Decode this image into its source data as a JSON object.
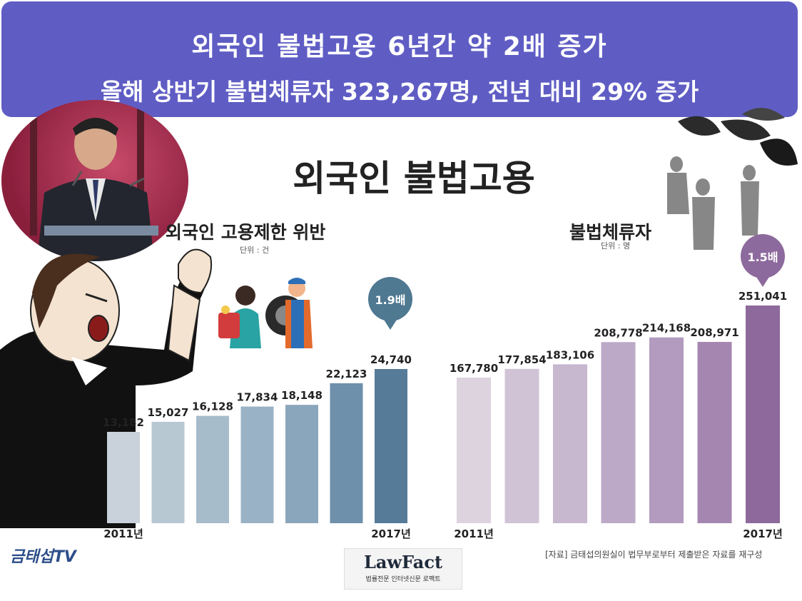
{
  "header": {
    "line1": "외국인 불법고용 6년간 약 2배 증가",
    "line2": "올해 상반기 불법체류자 323,267명, 전년 대비 29% 증가"
  },
  "main_title": "외국인 불법고용",
  "charts": {
    "left": {
      "title": "외국인 고용제한 위반",
      "unit": "단위 : 건",
      "badge": "1.9배"
    },
    "right": {
      "title": "불법체류자",
      "unit": "단위 : 명",
      "badge": "1.5배"
    }
  },
  "colors": {
    "banner": "#5f5dc4",
    "left_series": [
      "#c9d2da",
      "#b7c8d3",
      "#a7bccb",
      "#9ab2c5",
      "#8aa6bc",
      "#6e90ab",
      "#567b98"
    ],
    "right_series": [
      "#ddd3df",
      "#d0c3d6",
      "#c7b7cf",
      "#bca9c7",
      "#b29bbf",
      "#a586b1",
      "#8e6a9c"
    ],
    "left_badge": "#4f7891",
    "right_badge": "#8d6a9d"
  },
  "chart_data": [
    {
      "type": "bar",
      "title": "외국인 고용제한 위반",
      "unit": "단위 : 건",
      "categories": [
        "2011년",
        "",
        "",
        "",
        "",
        "",
        "2017년"
      ],
      "values": [
        13182,
        15027,
        16128,
        17834,
        18148,
        22123,
        24740
      ],
      "labels": [
        "13,182",
        "15,027",
        "16,128",
        "17,834",
        "18,148",
        "22,123",
        "24,740"
      ],
      "annotation": "1.9배"
    },
    {
      "type": "bar",
      "title": "불법체류자",
      "unit": "단위 : 명",
      "categories": [
        "2011년",
        "",
        "",
        "",
        "",
        "",
        "2017년"
      ],
      "values": [
        167780,
        177854,
        183106,
        208778,
        214168,
        208971,
        251041
      ],
      "labels": [
        "167,780",
        "177,854",
        "183,106",
        "208,778",
        "214,168",
        "208,971",
        "251,041"
      ],
      "annotation": "1.5배"
    }
  ],
  "footer": {
    "source": "[자료] 금태섭의원실이 법무부로부터 제출받은 자료를 재구성",
    "logo_tv": "금태섭TV",
    "lawfact_name": "LawFact",
    "lawfact_tagline": "법률전문 인터넷신문 로팩트"
  }
}
